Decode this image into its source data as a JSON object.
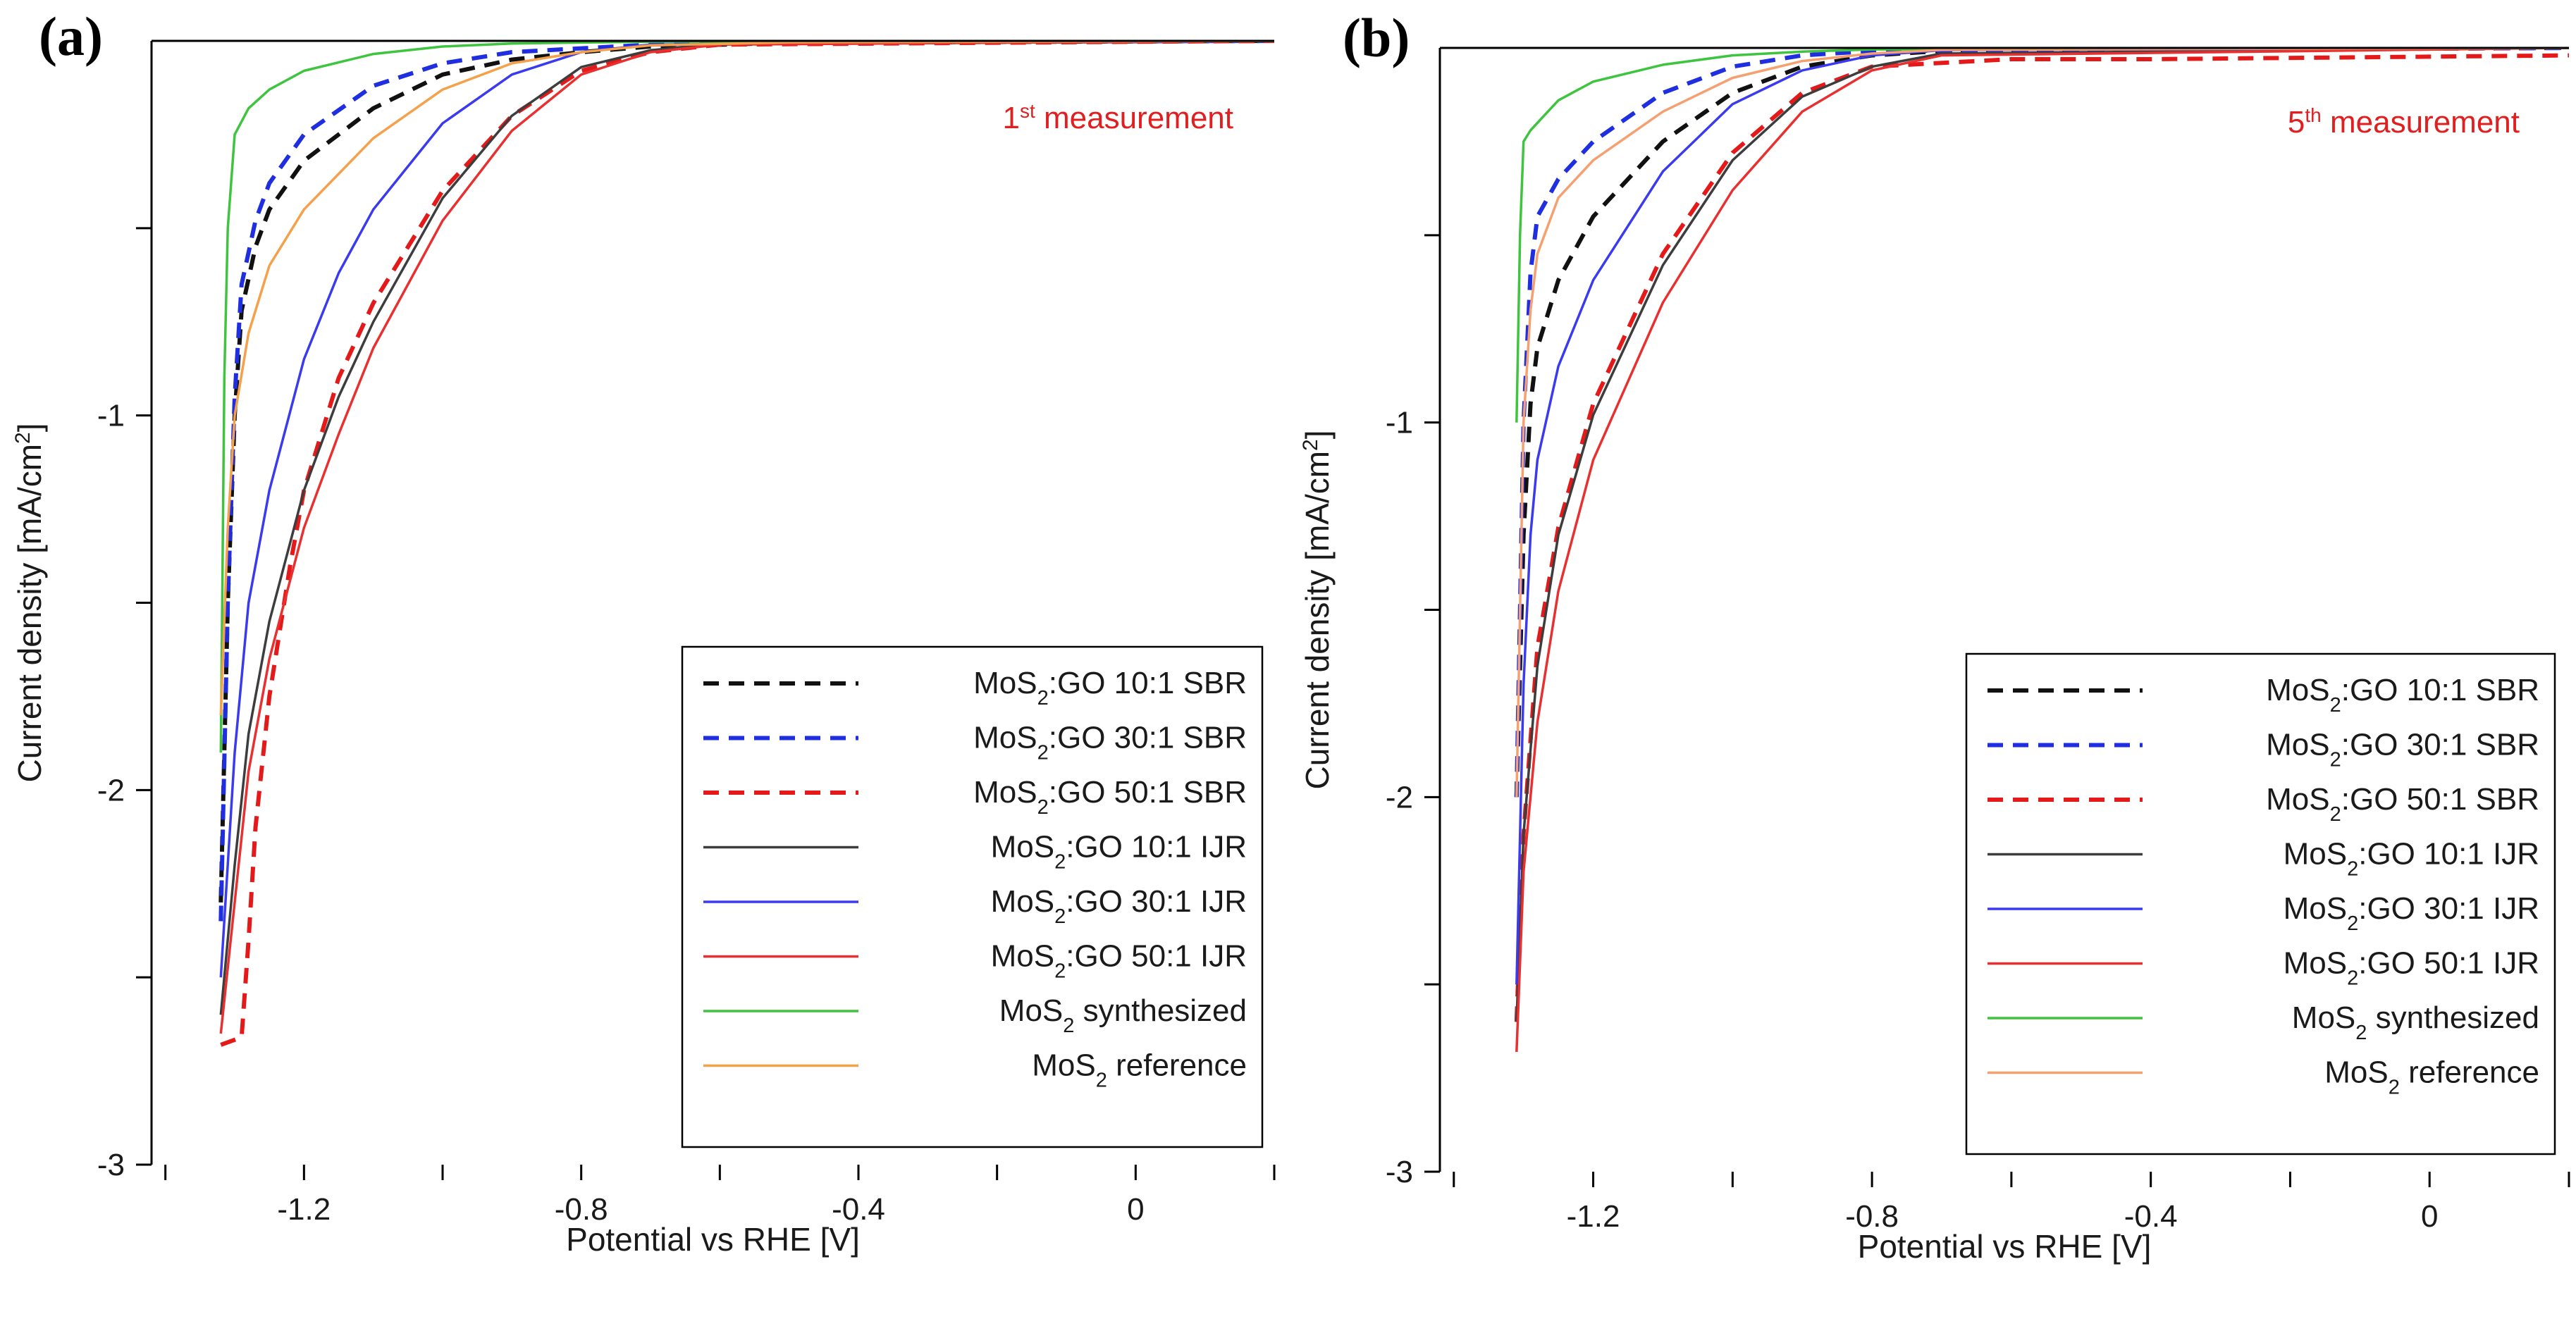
{
  "chart_data": [
    {
      "type": "line",
      "panel_label": "(a)",
      "annotation": {
        "prefix": "1",
        "sup": "st",
        "rest": " measurement"
      },
      "xlabel": "Potential vs RHE [V]",
      "ylabel": "Current density [mA/cm",
      "ylabel_sup": "2",
      "ylabel_end": "]",
      "xlim": [
        -1.42,
        0.2
      ],
      "ylim": [
        -3.0,
        0.0
      ],
      "xticks": [
        -1.2,
        -0.8,
        -0.4,
        0.0
      ],
      "xtick_labels": [
        "-1.2",
        "-0.8",
        "-0.4",
        "0"
      ],
      "yticks": [
        -1.0,
        -2.0,
        -3.0
      ],
      "ytick_labels": [
        "-1",
        "-2",
        "-3"
      ],
      "legend_position": "lower-right",
      "series": [
        {
          "name": "MoS2:GO 10:1 SBR",
          "label_main": "MoS",
          "label_sub": "2",
          "label_rest": ":GO 10:1 SBR",
          "color": "#111111",
          "dashed": true,
          "x": [
            -1.32,
            -1.31,
            -1.3,
            -1.29,
            -1.27,
            -1.25,
            -1.2,
            -1.1,
            -1.0,
            -0.9,
            -0.8,
            -0.7,
            -0.5,
            0.2
          ],
          "y": [
            -2.3,
            -1.5,
            -1.0,
            -0.72,
            -0.55,
            -0.45,
            -0.32,
            -0.18,
            -0.09,
            -0.05,
            -0.03,
            -0.015,
            -0.005,
            0.0
          ]
        },
        {
          "name": "MoS2:GO 30:1 SBR",
          "label_main": "MoS",
          "label_sub": "2",
          "label_rest": ":GO 30:1 SBR",
          "color": "#1f2fe0",
          "dashed": true,
          "x": [
            -1.32,
            -1.31,
            -1.3,
            -1.29,
            -1.27,
            -1.25,
            -1.2,
            -1.1,
            -1.0,
            -0.9,
            -0.8,
            -0.7,
            -0.5,
            0.2
          ],
          "y": [
            -2.35,
            -1.5,
            -0.95,
            -0.65,
            -0.48,
            -0.38,
            -0.25,
            -0.12,
            -0.06,
            -0.03,
            -0.02,
            -0.01,
            -0.004,
            0.0
          ]
        },
        {
          "name": "MoS2:GO 50:1 SBR",
          "label_main": "MoS",
          "label_sub": "2",
          "label_rest": ":GO 50:1 SBR",
          "color": "#e41a1a",
          "dashed": true,
          "x": [
            -1.32,
            -1.29,
            -1.28,
            -1.27,
            -1.25,
            -1.22,
            -1.2,
            -1.15,
            -1.1,
            -1.0,
            -0.9,
            -0.8,
            -0.7,
            -0.6,
            0.2
          ],
          "y": [
            -2.68,
            -2.66,
            -2.4,
            -2.1,
            -1.75,
            -1.4,
            -1.2,
            -0.9,
            -0.7,
            -0.4,
            -0.2,
            -0.08,
            -0.03,
            -0.01,
            0.0
          ]
        },
        {
          "name": "MoS2:GO 10:1 IJR",
          "label_main": "MoS",
          "label_sub": "2",
          "label_rest": ":GO 10:1 IJR",
          "color": "#3d3d3d",
          "dashed": false,
          "x": [
            -1.32,
            -1.3,
            -1.28,
            -1.25,
            -1.2,
            -1.15,
            -1.1,
            -1.0,
            -0.9,
            -0.8,
            -0.7,
            -0.6,
            0.2
          ],
          "y": [
            -2.6,
            -2.2,
            -1.85,
            -1.55,
            -1.2,
            -0.95,
            -0.75,
            -0.42,
            -0.2,
            -0.07,
            -0.025,
            -0.008,
            0.0
          ]
        },
        {
          "name": "MoS2:GO 30:1 IJR",
          "label_main": "MoS",
          "label_sub": "2",
          "label_rest": ":GO 30:1 IJR",
          "color": "#3a3aee",
          "dashed": false,
          "x": [
            -1.32,
            -1.3,
            -1.28,
            -1.25,
            -1.2,
            -1.15,
            -1.1,
            -1.0,
            -0.9,
            -0.8,
            -0.7,
            0.2
          ],
          "y": [
            -2.5,
            -1.9,
            -1.5,
            -1.2,
            -0.85,
            -0.62,
            -0.45,
            -0.22,
            -0.09,
            -0.03,
            -0.01,
            0.0
          ]
        },
        {
          "name": "MoS2:GO 50:1 IJR",
          "label_main": "MoS",
          "label_sub": "2",
          "label_rest": ":GO 50:1 IJR",
          "color": "#e83030",
          "dashed": false,
          "x": [
            -1.32,
            -1.3,
            -1.28,
            -1.25,
            -1.2,
            -1.15,
            -1.1,
            -1.0,
            -0.9,
            -0.8,
            -0.7,
            -0.6,
            0.2
          ],
          "y": [
            -2.65,
            -2.3,
            -1.95,
            -1.65,
            -1.3,
            -1.05,
            -0.82,
            -0.48,
            -0.24,
            -0.09,
            -0.03,
            -0.01,
            0.0
          ]
        },
        {
          "name": "MoS2 synthesized",
          "label_main": "MoS",
          "label_sub": "2",
          "label_rest": " synthesized",
          "color": "#3ec43e",
          "dashed": false,
          "x": [
            -1.32,
            -1.315,
            -1.31,
            -1.3,
            -1.28,
            -1.25,
            -1.2,
            -1.1,
            -1.0,
            -0.9,
            -0.7,
            0.2
          ],
          "y": [
            -1.9,
            -0.9,
            -0.5,
            -0.25,
            -0.18,
            -0.13,
            -0.08,
            -0.035,
            -0.015,
            -0.007,
            -0.002,
            0.0
          ]
        },
        {
          "name": "MoS2 reference",
          "label_main": "MoS",
          "label_sub": "2",
          "label_rest": " reference",
          "color": "#f5a04a",
          "dashed": false,
          "x": [
            -1.32,
            -1.31,
            -1.3,
            -1.28,
            -1.25,
            -1.2,
            -1.1,
            -1.0,
            -0.9,
            -0.8,
            -0.7,
            -0.5,
            0.2
          ],
          "y": [
            -1.8,
            -1.3,
            -1.0,
            -0.78,
            -0.6,
            -0.45,
            -0.26,
            -0.13,
            -0.06,
            -0.03,
            -0.012,
            -0.004,
            0.0
          ]
        }
      ]
    },
    {
      "type": "line",
      "panel_label": "(b)",
      "annotation": {
        "prefix": "5",
        "sup": "th",
        "rest": " measurement"
      },
      "xlabel": "Potential vs RHE [V]",
      "ylabel": "Current density [mA/cm",
      "ylabel_sup": "2",
      "ylabel_end": "]",
      "xlim": [
        -1.42,
        0.2
      ],
      "ylim": [
        -3.0,
        0.0
      ],
      "xticks": [
        -1.2,
        -0.8,
        -0.4,
        0.0
      ],
      "xtick_labels": [
        "-1.2",
        "-0.8",
        "-0.4",
        "0"
      ],
      "yticks": [
        -1.0,
        -2.0,
        -3.0
      ],
      "ytick_labels": [
        "-1",
        "-2",
        "-3"
      ],
      "legend_position": "lower-right",
      "series": [
        {
          "name": "MoS2:GO 10:1 SBR",
          "label_main": "MoS",
          "label_sub": "2",
          "label_rest": ":GO 10:1 SBR",
          "color": "#111111",
          "dashed": true,
          "x": [
            -1.31,
            -1.3,
            -1.29,
            -1.28,
            -1.25,
            -1.2,
            -1.1,
            -1.0,
            -0.9,
            -0.8,
            -0.7,
            0.2
          ],
          "y": [
            -2.0,
            -1.3,
            -0.95,
            -0.8,
            -0.62,
            -0.45,
            -0.25,
            -0.12,
            -0.05,
            -0.02,
            -0.008,
            0.0
          ]
        },
        {
          "name": "MoS2:GO 30:1 SBR",
          "label_main": "MoS",
          "label_sub": "2",
          "label_rest": ":GO 30:1 SBR",
          "color": "#1f2fe0",
          "dashed": true,
          "x": [
            -1.31,
            -1.3,
            -1.29,
            -1.28,
            -1.25,
            -1.2,
            -1.1,
            -1.0,
            -0.9,
            -0.8,
            0.2
          ],
          "y": [
            -2.0,
            -1.0,
            -0.6,
            -0.45,
            -0.35,
            -0.25,
            -0.12,
            -0.05,
            -0.02,
            -0.008,
            0.0
          ]
        },
        {
          "name": "MoS2:GO 50:1 SBR",
          "label_main": "MoS",
          "label_sub": "2",
          "label_rest": ":GO 50:1 SBR",
          "color": "#e41a1a",
          "dashed": true,
          "x": [
            -1.31,
            -1.3,
            -1.28,
            -1.25,
            -1.2,
            -1.1,
            -1.0,
            -0.9,
            -0.8,
            -0.6,
            -0.4,
            0.2
          ],
          "y": [
            -2.6,
            -2.1,
            -1.6,
            -1.28,
            -0.95,
            -0.55,
            -0.28,
            -0.12,
            -0.05,
            -0.03,
            -0.03,
            -0.02
          ]
        },
        {
          "name": "MoS2:GO 10:1 IJR",
          "label_main": "MoS",
          "label_sub": "2",
          "label_rest": ":GO 10:1 IJR",
          "color": "#3d3d3d",
          "dashed": false,
          "x": [
            -1.31,
            -1.3,
            -1.28,
            -1.25,
            -1.2,
            -1.1,
            -1.0,
            -0.9,
            -0.8,
            -0.7,
            0.2
          ],
          "y": [
            -2.6,
            -2.1,
            -1.65,
            -1.3,
            -0.98,
            -0.58,
            -0.3,
            -0.13,
            -0.05,
            -0.015,
            0.0
          ]
        },
        {
          "name": "MoS2:GO 30:1 IJR",
          "label_main": "MoS",
          "label_sub": "2",
          "label_rest": ":GO 30:1 IJR",
          "color": "#3a3aee",
          "dashed": false,
          "x": [
            -1.31,
            -1.3,
            -1.29,
            -1.28,
            -1.25,
            -1.2,
            -1.1,
            -1.0,
            -0.9,
            -0.8,
            -0.7,
            0.2
          ],
          "y": [
            -2.5,
            -1.7,
            -1.3,
            -1.1,
            -0.85,
            -0.62,
            -0.33,
            -0.15,
            -0.06,
            -0.02,
            -0.006,
            0.0
          ]
        },
        {
          "name": "MoS2:GO 50:1 IJR",
          "label_main": "MoS",
          "label_sub": "2",
          "label_rest": ":GO 50:1 IJR",
          "color": "#e83030",
          "dashed": false,
          "x": [
            -1.31,
            -1.3,
            -1.28,
            -1.25,
            -1.2,
            -1.1,
            -1.0,
            -0.9,
            -0.8,
            -0.7,
            0.2
          ],
          "y": [
            -2.68,
            -2.2,
            -1.8,
            -1.45,
            -1.1,
            -0.68,
            -0.38,
            -0.17,
            -0.06,
            -0.02,
            0.0
          ]
        },
        {
          "name": "MoS2 synthesized",
          "label_main": "MoS",
          "label_sub": "2",
          "label_rest": " synthesized",
          "color": "#3ec43e",
          "dashed": false,
          "x": [
            -1.31,
            -1.305,
            -1.3,
            -1.29,
            -1.27,
            -1.25,
            -1.2,
            -1.1,
            -1.0,
            -0.9,
            -0.8,
            0.2
          ],
          "y": [
            -1.0,
            -0.5,
            -0.25,
            -0.22,
            -0.18,
            -0.14,
            -0.09,
            -0.045,
            -0.02,
            -0.01,
            -0.004,
            0.0
          ]
        },
        {
          "name": "MoS2 reference",
          "label_main": "MoS",
          "label_sub": "2",
          "label_rest": " reference",
          "color": "#f5a070",
          "dashed": false,
          "x": [
            -1.31,
            -1.3,
            -1.29,
            -1.28,
            -1.25,
            -1.2,
            -1.1,
            -1.0,
            -0.9,
            -0.8,
            -0.7,
            0.2
          ],
          "y": [
            -2.0,
            -1.0,
            -0.7,
            -0.55,
            -0.4,
            -0.3,
            -0.17,
            -0.08,
            -0.035,
            -0.015,
            -0.005,
            0.0
          ]
        }
      ]
    }
  ]
}
